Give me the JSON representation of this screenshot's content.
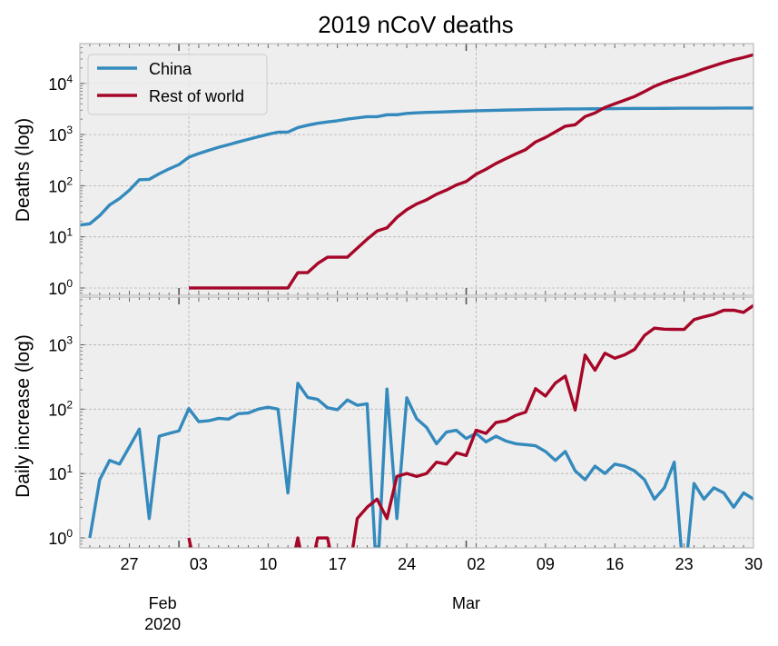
{
  "colors": {
    "china": "#348ABD",
    "rest": "#A60628",
    "panel_bg": "#EEEEEE",
    "grid": "#B2B2B2",
    "spine": "#BCBCBC"
  },
  "chart_data": [
    {
      "type": "line",
      "title": "2019 nCoV deaths",
      "xlabel": "",
      "ylabel": "Deaths (log)",
      "yscale": "log",
      "ylim": [
        0.72,
        60000
      ],
      "xlim": [
        "2020-01-22",
        "2020-03-30"
      ],
      "y_ticks": [
        1,
        10,
        100,
        1000,
        10000
      ],
      "y_tick_labels": [
        {
          "base": "10",
          "exp": "0"
        },
        {
          "base": "10",
          "exp": "1"
        },
        {
          "base": "10",
          "exp": "2"
        },
        {
          "base": "10",
          "exp": "3"
        },
        {
          "base": "10",
          "exp": "4"
        }
      ],
      "grid": true,
      "legend": {
        "position": "upper-left",
        "entries": [
          "China",
          "Rest of world"
        ]
      },
      "series": [
        {
          "name": "China",
          "color_key": "china",
          "x": [
            "2020-01-22",
            "2020-01-23",
            "2020-01-24",
            "2020-01-25",
            "2020-01-26",
            "2020-01-27",
            "2020-01-28",
            "2020-01-29",
            "2020-01-30",
            "2020-01-31",
            "2020-02-01",
            "2020-02-02",
            "2020-02-03",
            "2020-02-04",
            "2020-02-05",
            "2020-02-06",
            "2020-02-07",
            "2020-02-08",
            "2020-02-09",
            "2020-02-10",
            "2020-02-11",
            "2020-02-12",
            "2020-02-13",
            "2020-02-14",
            "2020-02-15",
            "2020-02-16",
            "2020-02-17",
            "2020-02-18",
            "2020-02-19",
            "2020-02-20",
            "2020-02-21",
            "2020-02-22",
            "2020-02-23",
            "2020-02-24",
            "2020-02-25",
            "2020-02-26",
            "2020-02-27",
            "2020-02-28",
            "2020-02-29",
            "2020-03-01",
            "2020-03-02",
            "2020-03-03",
            "2020-03-04",
            "2020-03-05",
            "2020-03-06",
            "2020-03-07",
            "2020-03-08",
            "2020-03-09",
            "2020-03-10",
            "2020-03-11",
            "2020-03-12",
            "2020-03-13",
            "2020-03-14",
            "2020-03-15",
            "2020-03-16",
            "2020-03-17",
            "2020-03-18",
            "2020-03-19",
            "2020-03-20",
            "2020-03-21",
            "2020-03-22",
            "2020-03-23",
            "2020-03-24",
            "2020-03-25",
            "2020-03-26",
            "2020-03-27",
            "2020-03-28",
            "2020-03-29",
            "2020-03-30"
          ],
          "y": [
            17,
            18,
            26,
            42,
            56,
            82,
            131,
            133,
            171,
            213,
            259,
            361,
            425,
            491,
            563,
            633,
            718,
            805,
            905,
            1012,
            1112,
            1117,
            1369,
            1521,
            1663,
            1765,
            1863,
            2002,
            2118,
            2236,
            2236,
            2441,
            2443,
            2593,
            2663,
            2715,
            2744,
            2788,
            2835,
            2870,
            2912,
            2943,
            2981,
            3013,
            3042,
            3070,
            3097,
            3119,
            3136,
            3158,
            3169,
            3176,
            3189,
            3199,
            3213,
            3226,
            3237,
            3245,
            3249,
            3253,
            3259,
            3274,
            3274,
            3281,
            3285,
            3291,
            3296,
            3299,
            3304
          ]
        },
        {
          "name": "Rest of world",
          "color_key": "rest",
          "x": [
            "2020-02-02",
            "2020-02-03",
            "2020-02-04",
            "2020-02-05",
            "2020-02-06",
            "2020-02-07",
            "2020-02-08",
            "2020-02-09",
            "2020-02-10",
            "2020-02-11",
            "2020-02-12",
            "2020-02-13",
            "2020-02-14",
            "2020-02-15",
            "2020-02-16",
            "2020-02-17",
            "2020-02-18",
            "2020-02-19",
            "2020-02-20",
            "2020-02-21",
            "2020-02-22",
            "2020-02-23",
            "2020-02-24",
            "2020-02-25",
            "2020-02-26",
            "2020-02-27",
            "2020-02-28",
            "2020-02-29",
            "2020-03-01",
            "2020-03-02",
            "2020-03-03",
            "2020-03-04",
            "2020-03-05",
            "2020-03-06",
            "2020-03-07",
            "2020-03-08",
            "2020-03-09",
            "2020-03-10",
            "2020-03-11",
            "2020-03-12",
            "2020-03-13",
            "2020-03-14",
            "2020-03-15",
            "2020-03-16",
            "2020-03-17",
            "2020-03-18",
            "2020-03-19",
            "2020-03-20",
            "2020-03-21",
            "2020-03-22",
            "2020-03-23",
            "2020-03-24",
            "2020-03-25",
            "2020-03-26",
            "2020-03-27",
            "2020-03-28",
            "2020-03-29",
            "2020-03-30"
          ],
          "y": [
            1,
            1,
            1,
            1,
            1,
            1,
            1,
            1,
            1,
            1,
            1,
            2,
            2,
            3,
            4,
            4,
            4,
            6,
            9,
            13,
            15,
            24,
            34,
            44,
            53,
            68,
            82,
            103,
            121,
            168,
            210,
            272,
            338,
            418,
            508,
            716,
            876,
            1130,
            1456,
            1553,
            2244,
            2646,
            3386,
            4004,
            4702,
            5551,
            6947,
            8761,
            10504,
            12239,
            13972,
            16429,
            19149,
            22118,
            25550,
            28993,
            32180,
            36271
          ]
        }
      ]
    },
    {
      "type": "line",
      "xlabel": "",
      "ylabel": "Daily increase (log)",
      "yscale": "log",
      "ylim": [
        0.7,
        5500
      ],
      "xlim": [
        "2020-01-22",
        "2020-03-30"
      ],
      "y_ticks": [
        1,
        10,
        100,
        1000
      ],
      "y_tick_labels": [
        {
          "base": "10",
          "exp": "0"
        },
        {
          "base": "10",
          "exp": "1"
        },
        {
          "base": "10",
          "exp": "2"
        },
        {
          "base": "10",
          "exp": "3"
        }
      ],
      "x_tick_labels": [
        {
          "date": "2020-01-27",
          "label": "27"
        },
        {
          "date": "2020-02-03",
          "label": "03"
        },
        {
          "date": "2020-02-10",
          "label": "10"
        },
        {
          "date": "2020-02-17",
          "label": "17"
        },
        {
          "date": "2020-02-24",
          "label": "24"
        },
        {
          "date": "2020-03-02",
          "label": "02"
        },
        {
          "date": "2020-03-09",
          "label": "09"
        },
        {
          "date": "2020-03-16",
          "label": "16"
        },
        {
          "date": "2020-03-23",
          "label": "23"
        },
        {
          "date": "2020-03-30",
          "label": "30"
        }
      ],
      "x_major_labels": [
        {
          "date": "2020-02-01",
          "label": "Feb",
          "sub": "2020"
        },
        {
          "date": "2020-03-01",
          "label": "Mar",
          "sub": ""
        }
      ],
      "grid": true,
      "series": [
        {
          "name": "China",
          "color_key": "china",
          "x": [
            "2020-01-23",
            "2020-01-24",
            "2020-01-25",
            "2020-01-26",
            "2020-01-27",
            "2020-01-28",
            "2020-01-29",
            "2020-01-30",
            "2020-01-31",
            "2020-02-01",
            "2020-02-02",
            "2020-02-03",
            "2020-02-04",
            "2020-02-05",
            "2020-02-06",
            "2020-02-07",
            "2020-02-08",
            "2020-02-09",
            "2020-02-10",
            "2020-02-11",
            "2020-02-12",
            "2020-02-13",
            "2020-02-14",
            "2020-02-15",
            "2020-02-16",
            "2020-02-17",
            "2020-02-18",
            "2020-02-19",
            "2020-02-20",
            "2020-02-21",
            "2020-02-22",
            "2020-02-23",
            "2020-02-24",
            "2020-02-25",
            "2020-02-26",
            "2020-02-27",
            "2020-02-28",
            "2020-02-29",
            "2020-03-01",
            "2020-03-02",
            "2020-03-03",
            "2020-03-04",
            "2020-03-05",
            "2020-03-06",
            "2020-03-07",
            "2020-03-08",
            "2020-03-09",
            "2020-03-10",
            "2020-03-11",
            "2020-03-12",
            "2020-03-13",
            "2020-03-14",
            "2020-03-15",
            "2020-03-16",
            "2020-03-17",
            "2020-03-18",
            "2020-03-19",
            "2020-03-20",
            "2020-03-21",
            "2020-03-22",
            "2020-03-23",
            "2020-03-24",
            "2020-03-25",
            "2020-03-26",
            "2020-03-27",
            "2020-03-28",
            "2020-03-29",
            "2020-03-30"
          ],
          "y": [
            1,
            8,
            16,
            14,
            26,
            49,
            2,
            38,
            42,
            46,
            102,
            64,
            66,
            72,
            70,
            85,
            87,
            100,
            107,
            100,
            5,
            252,
            152,
            142,
            105,
            98,
            139,
            115,
            121,
            0,
            205,
            2,
            150,
            71,
            52,
            29,
            44,
            47,
            35,
            42,
            31,
            38,
            32,
            29,
            28,
            27,
            22,
            16,
            22,
            11,
            8,
            13,
            10,
            14,
            13,
            11,
            8,
            4,
            6,
            15,
            0,
            7,
            4,
            6,
            5,
            3,
            5,
            4
          ]
        },
        {
          "name": "Rest of world",
          "color_key": "rest",
          "x": [
            "2020-02-02",
            "2020-02-03",
            "2020-02-04",
            "2020-02-05",
            "2020-02-06",
            "2020-02-07",
            "2020-02-08",
            "2020-02-09",
            "2020-02-10",
            "2020-02-11",
            "2020-02-12",
            "2020-02-13",
            "2020-02-14",
            "2020-02-15",
            "2020-02-16",
            "2020-02-17",
            "2020-02-18",
            "2020-02-19",
            "2020-02-20",
            "2020-02-21",
            "2020-02-22",
            "2020-02-23",
            "2020-02-24",
            "2020-02-25",
            "2020-02-26",
            "2020-02-27",
            "2020-02-28",
            "2020-02-29",
            "2020-03-01",
            "2020-03-02",
            "2020-03-03",
            "2020-03-04",
            "2020-03-05",
            "2020-03-06",
            "2020-03-07",
            "2020-03-08",
            "2020-03-09",
            "2020-03-10",
            "2020-03-11",
            "2020-03-12",
            "2020-03-13",
            "2020-03-14",
            "2020-03-15",
            "2020-03-16",
            "2020-03-17",
            "2020-03-18",
            "2020-03-19",
            "2020-03-20",
            "2020-03-21",
            "2020-03-22",
            "2020-03-23",
            "2020-03-24",
            "2020-03-25",
            "2020-03-26",
            "2020-03-27",
            "2020-03-28",
            "2020-03-29",
            "2020-03-30"
          ],
          "y": [
            1,
            0,
            0,
            0,
            0,
            0,
            0,
            0,
            0,
            0,
            0,
            1,
            0,
            1,
            1,
            0,
            0,
            2,
            3,
            4,
            2,
            9,
            10,
            9,
            10,
            15,
            14,
            21,
            19,
            47,
            42,
            62,
            66,
            80,
            90,
            208,
            160,
            254,
            326,
            97,
            691,
            402,
            740,
            618,
            698,
            849,
            1396,
            1814,
            1743,
            1735,
            1733,
            2457,
            2720,
            2969,
            3432,
            3443,
            3187,
            4091
          ]
        }
      ]
    }
  ]
}
